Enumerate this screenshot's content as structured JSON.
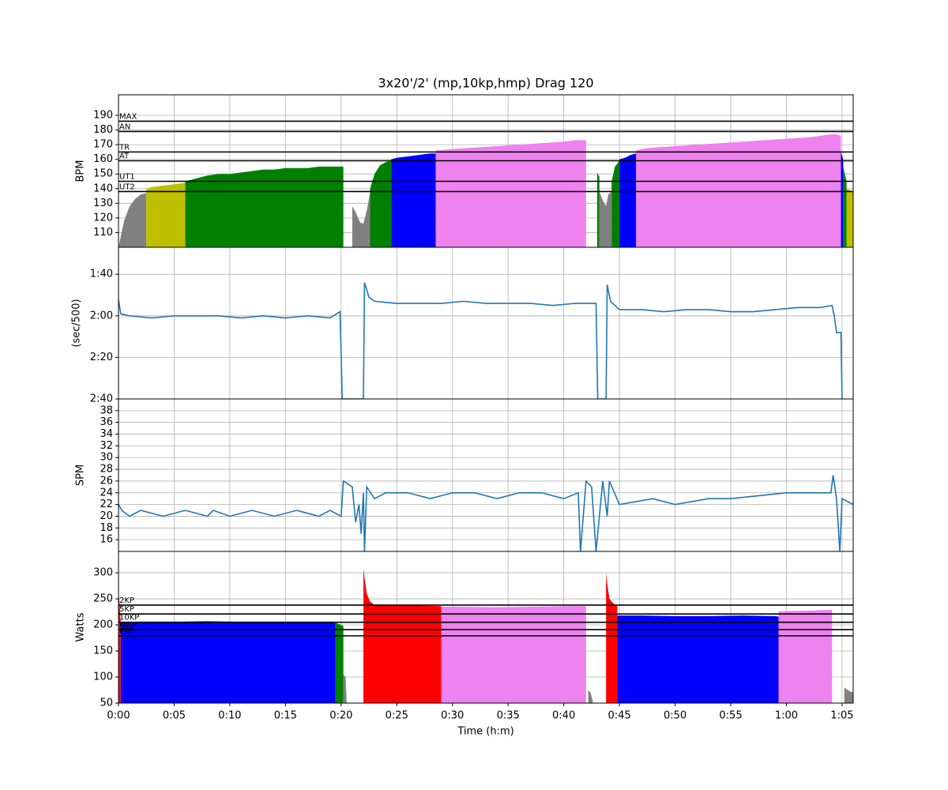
{
  "chart_data": [
    {
      "type": "area",
      "title": "3x20'/2' (mp,10kp,hmp) Drag 120",
      "ylabel": "BPM",
      "xlim": [
        0,
        66
      ],
      "ylim": [
        100,
        204
      ],
      "yticks": [
        110,
        120,
        130,
        140,
        150,
        160,
        170,
        180,
        190
      ],
      "grid": true,
      "hlines": [
        {
          "label": "MAX",
          "value": 186
        },
        {
          "label": "AN",
          "value": 179
        },
        {
          "label": "TR",
          "value": 165
        },
        {
          "label": "AT",
          "value": 159
        },
        {
          "label": "UT1",
          "value": 145
        },
        {
          "label": "UT2",
          "value": 138
        }
      ],
      "series": [
        {
          "color": "gray",
          "x": [
            0,
            0.5,
            1,
            1.5,
            2,
            2.5
          ],
          "values": [
            100,
            118,
            128,
            133,
            136,
            137
          ]
        },
        {
          "color": "#bfbf00",
          "x": [
            2.5,
            3,
            4,
            5,
            6
          ],
          "values": [
            140,
            141,
            142,
            143,
            144
          ]
        },
        {
          "color": "green",
          "x": [
            6,
            7,
            8,
            9,
            10,
            11,
            12,
            13,
            14,
            15,
            16,
            17,
            18,
            19,
            20,
            20.2
          ],
          "values": [
            145,
            147,
            149,
            150,
            150,
            151,
            152,
            153,
            153,
            154,
            154,
            154,
            155,
            155,
            155,
            155
          ]
        },
        {
          "color": "gray",
          "x": [
            21,
            21.3,
            21.7,
            22,
            22.3,
            22.6
          ],
          "values": [
            128,
            124,
            117,
            116,
            125,
            137
          ]
        },
        {
          "color": "green",
          "x": [
            22.6,
            23,
            23.5,
            24,
            24.5
          ],
          "values": [
            140,
            150,
            156,
            158,
            159
          ]
        },
        {
          "color": "blue",
          "x": [
            24.5,
            25,
            26,
            27,
            28,
            28.5
          ],
          "values": [
            160,
            161,
            162,
            163,
            164,
            164
          ]
        },
        {
          "color": "violet",
          "x": [
            28.5,
            30,
            32,
            34,
            36,
            38,
            40,
            41,
            42
          ],
          "values": [
            166,
            167,
            168,
            169,
            170,
            171,
            172,
            173,
            173
          ]
        },
        {
          "color": "green",
          "x": [
            43,
            43.2
          ],
          "values": [
            151,
            148
          ]
        },
        {
          "color": "gray",
          "x": [
            43.2,
            43.5,
            43.8,
            44,
            44.3
          ],
          "values": [
            138,
            132,
            128,
            136,
            138
          ]
        },
        {
          "color": "green",
          "x": [
            44.3,
            44.6,
            45
          ],
          "values": [
            145,
            155,
            159
          ]
        },
        {
          "color": "blue",
          "x": [
            45,
            45.5,
            46,
            46.5
          ],
          "values": [
            160,
            161,
            163,
            164
          ]
        },
        {
          "color": "violet",
          "x": [
            46.5,
            47,
            48,
            50,
            52,
            54,
            56,
            58,
            60,
            62,
            63,
            64,
            64.5,
            64.9
          ],
          "values": [
            166,
            167,
            168,
            169,
            170,
            171,
            172,
            173,
            174,
            175,
            176,
            177,
            177,
            176
          ]
        },
        {
          "color": "blue",
          "x": [
            64.9,
            65.1
          ],
          "values": [
            165,
            160
          ]
        },
        {
          "color": "green",
          "x": [
            65.1,
            65.4
          ],
          "values": [
            155,
            145
          ]
        },
        {
          "color": "#bfbf00",
          "x": [
            65.4,
            66
          ],
          "values": [
            140,
            138
          ]
        }
      ]
    },
    {
      "type": "line",
      "ylabel": "(sec/500)",
      "xlim": [
        0,
        66
      ],
      "ylim": [
        160,
        87
      ],
      "grid": true,
      "yticks": [
        {
          "value": 100,
          "label": "1:40"
        },
        {
          "value": 120,
          "label": "2:00"
        },
        {
          "value": 140,
          "label": "2:20"
        },
        {
          "value": 160,
          "label": "2:40"
        }
      ],
      "series": [
        {
          "color": "#1f77b4",
          "x": [
            0,
            0.2,
            1,
            3,
            5,
            7,
            9,
            11,
            13,
            15,
            17,
            19,
            19.9,
            20.1,
            22.0,
            22.1,
            22.5,
            23,
            25,
            27,
            29,
            31,
            33,
            35,
            37,
            39,
            41,
            42.9,
            43.05,
            43.8,
            43.9,
            44.2,
            45,
            47,
            49,
            51,
            53,
            55,
            57,
            59,
            61,
            63,
            64.1,
            64.3,
            64.5,
            64.9,
            65,
            65.1
          ],
          "values": [
            112,
            119,
            120,
            121,
            120,
            120,
            120,
            121,
            120,
            121,
            120,
            121,
            118,
            160,
            160,
            104,
            111,
            113,
            114,
            114,
            114,
            113,
            114,
            114,
            114,
            115,
            114,
            114,
            160,
            160,
            105,
            113,
            117,
            117,
            118,
            117,
            117,
            118,
            118,
            117,
            116,
            116,
            115,
            120,
            128,
            128,
            160,
            160
          ]
        }
      ]
    },
    {
      "type": "line",
      "ylabel": "SPM",
      "xlim": [
        0,
        66
      ],
      "ylim": [
        14,
        40
      ],
      "grid": true,
      "yticks": [
        16,
        18,
        20,
        22,
        24,
        26,
        28,
        30,
        32,
        34,
        36,
        38
      ],
      "series": [
        {
          "color": "#1f77b4",
          "x": [
            0,
            0.3,
            1,
            2,
            4,
            6,
            8,
            8.5,
            10,
            12,
            14,
            16,
            18,
            19,
            20,
            20.2,
            21,
            21.3,
            21.6,
            21.8,
            22,
            22.1,
            22.3,
            23,
            24,
            26,
            28,
            30,
            32,
            34,
            36,
            38,
            40,
            41.3,
            41.5,
            42,
            42.5,
            42.9,
            43.5,
            43.9,
            44.1,
            45,
            48,
            50,
            53,
            55,
            60,
            63,
            64,
            64.2,
            64.5,
            64.8,
            65,
            66
          ],
          "values": [
            22,
            21,
            20,
            21,
            20,
            21,
            20,
            21,
            20,
            21,
            20,
            21,
            20,
            21,
            20,
            26,
            25,
            19,
            22,
            17,
            24,
            14,
            25,
            23,
            24,
            24,
            23,
            24,
            24,
            23,
            24,
            24,
            23,
            24,
            14,
            26,
            25,
            14,
            26,
            20,
            26,
            22,
            23,
            22,
            23,
            23,
            24,
            24,
            24,
            27,
            23,
            14,
            23,
            22
          ]
        }
      ]
    },
    {
      "type": "area",
      "ylabel": "Watts",
      "xlabel": "Time (h:m)",
      "xlim": [
        0,
        66
      ],
      "ylim": [
        50,
        341
      ],
      "grid": true,
      "yticks": [
        50,
        100,
        150,
        200,
        250,
        300
      ],
      "xticks": [
        {
          "value": 0,
          "label": "0:00"
        },
        {
          "value": 5,
          "label": "0:05"
        },
        {
          "value": 10,
          "label": "0:10"
        },
        {
          "value": 15,
          "label": "0:15"
        },
        {
          "value": 20,
          "label": "0:20"
        },
        {
          "value": 25,
          "label": "0:25"
        },
        {
          "value": 30,
          "label": "0:30"
        },
        {
          "value": 35,
          "label": "0:35"
        },
        {
          "value": 40,
          "label": "0:40"
        },
        {
          "value": 45,
          "label": "0:45"
        },
        {
          "value": 50,
          "label": "0:50"
        },
        {
          "value": 55,
          "label": "0:55"
        },
        {
          "value": 60,
          "label": "1:00"
        },
        {
          "value": 65,
          "label": "1:05"
        }
      ],
      "hlines": [
        {
          "label": "2KP",
          "value": 238
        },
        {
          "label": "5KP",
          "value": 221
        },
        {
          "label": "10KP",
          "value": 205
        },
        {
          "label": "HMP",
          "value": 191
        },
        {
          "label": "FTP",
          "value": 179
        }
      ],
      "series": [
        {
          "color": "red",
          "x": [
            0,
            0.1,
            0.2
          ],
          "values": [
            265,
            240,
            205
          ]
        },
        {
          "color": "blue",
          "x": [
            0.2,
            2,
            5,
            8,
            11,
            14,
            17,
            19,
            19.5
          ],
          "values": [
            205,
            206,
            206,
            207,
            206,
            206,
            206,
            206,
            205
          ]
        },
        {
          "color": "green",
          "x": [
            19.5,
            20,
            20.2
          ],
          "values": [
            204,
            200,
            198
          ]
        },
        {
          "color": "gray",
          "x": [
            20.2,
            20.4,
            20.5
          ],
          "values": [
            105,
            100,
            50
          ]
        },
        {
          "color": "red",
          "x": [
            22,
            22.1,
            22.3,
            22.6,
            23,
            25,
            27,
            29
          ],
          "values": [
            308,
            290,
            260,
            245,
            238,
            237,
            237,
            236
          ]
        },
        {
          "color": "violet",
          "x": [
            29,
            31,
            34,
            37,
            40,
            42
          ],
          "values": [
            235,
            235,
            234,
            235,
            236,
            236
          ]
        },
        {
          "color": "gray",
          "x": [
            42.2,
            42.4,
            42.6
          ],
          "values": [
            75,
            70,
            55
          ]
        },
        {
          "color": "red",
          "x": [
            43.8,
            43.9,
            44.1,
            44.5,
            44.8
          ],
          "values": [
            300,
            280,
            250,
            240,
            236
          ]
        },
        {
          "color": "blue",
          "x": [
            44.8,
            47,
            50,
            53,
            56,
            59,
            59.3
          ],
          "values": [
            218,
            218,
            217,
            217,
            218,
            217,
            216
          ]
        },
        {
          "color": "violet",
          "x": [
            59.3,
            61,
            63,
            64.1
          ],
          "values": [
            226,
            227,
            228,
            229
          ]
        },
        {
          "color": "gray",
          "x": [
            65.2,
            65.5,
            65.8,
            66
          ],
          "values": [
            80,
            75,
            72,
            70
          ]
        }
      ]
    }
  ]
}
